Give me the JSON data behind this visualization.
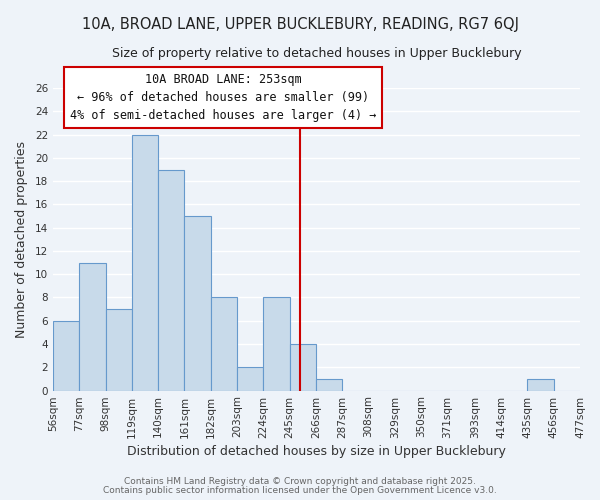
{
  "title": "10A, BROAD LANE, UPPER BUCKLEBURY, READING, RG7 6QJ",
  "subtitle": "Size of property relative to detached houses in Upper Bucklebury",
  "xlabel": "Distribution of detached houses by size in Upper Bucklebury",
  "ylabel": "Number of detached properties",
  "bin_edges": [
    56,
    77,
    98,
    119,
    140,
    161,
    182,
    203,
    224,
    245,
    266,
    287,
    308,
    329,
    350,
    371,
    393,
    414,
    435,
    456,
    477
  ],
  "bar_heights": [
    6,
    11,
    7,
    22,
    19,
    15,
    8,
    2,
    8,
    4,
    1,
    0,
    0,
    0,
    0,
    0,
    0,
    0,
    1,
    0
  ],
  "bar_color": "#c8daea",
  "bar_edge_color": "#6699cc",
  "vline_x": 253,
  "vline_color": "#cc0000",
  "ylim": [
    0,
    26
  ],
  "yticks": [
    0,
    2,
    4,
    6,
    8,
    10,
    12,
    14,
    16,
    18,
    20,
    22,
    24,
    26
  ],
  "annotation_title": "10A BROAD LANE: 253sqm",
  "annotation_line1": "← 96% of detached houses are smaller (99)",
  "annotation_line2": "4% of semi-detached houses are larger (4) →",
  "annotation_box_color": "#ffffff",
  "annotation_box_edge": "#cc0000",
  "footer_line1": "Contains HM Land Registry data © Crown copyright and database right 2025.",
  "footer_line2": "Contains public sector information licensed under the Open Government Licence v3.0.",
  "background_color": "#eef3f9",
  "grid_color": "#ffffff",
  "title_fontsize": 10.5,
  "subtitle_fontsize": 9,
  "tick_label_fontsize": 7.5,
  "axis_label_fontsize": 9,
  "footer_fontsize": 6.5,
  "annotation_fontsize": 8.5
}
